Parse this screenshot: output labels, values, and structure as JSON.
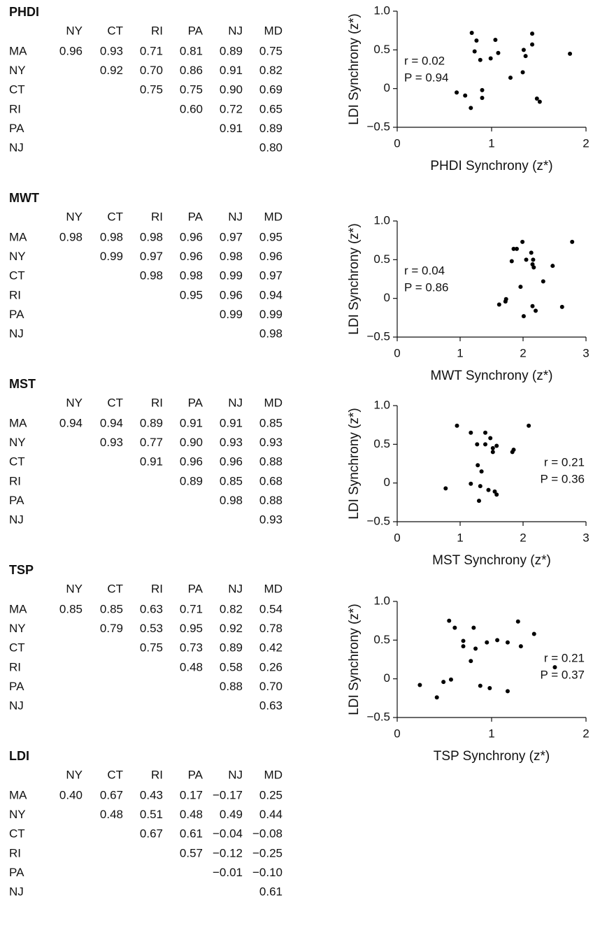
{
  "tables": [
    {
      "title": "PHDI",
      "columns": [
        "NY",
        "CT",
        "RI",
        "PA",
        "NJ",
        "MD"
      ],
      "rows": [
        {
          "label": "MA",
          "cells": [
            "0.96",
            "0.93",
            "0.71",
            "0.81",
            "0.89",
            "0.75"
          ]
        },
        {
          "label": "NY",
          "cells": [
            "0.92",
            "0.70",
            "0.86",
            "0.91",
            "0.82"
          ]
        },
        {
          "label": "CT",
          "cells": [
            "0.75",
            "0.75",
            "0.90",
            "0.69"
          ]
        },
        {
          "label": "RI",
          "cells": [
            "0.60",
            "0.72",
            "0.65"
          ]
        },
        {
          "label": "PA",
          "cells": [
            "0.91",
            "0.89"
          ]
        },
        {
          "label": "NJ",
          "cells": [
            "0.80"
          ]
        }
      ]
    },
    {
      "title": "MWT",
      "columns": [
        "NY",
        "CT",
        "RI",
        "PA",
        "NJ",
        "MD"
      ],
      "rows": [
        {
          "label": "MA",
          "cells": [
            "0.98",
            "0.98",
            "0.98",
            "0.96",
            "0.97",
            "0.95"
          ]
        },
        {
          "label": "NY",
          "cells": [
            "0.99",
            "0.97",
            "0.96",
            "0.98",
            "0.96"
          ]
        },
        {
          "label": "CT",
          "cells": [
            "0.98",
            "0.98",
            "0.99",
            "0.97"
          ]
        },
        {
          "label": "RI",
          "cells": [
            "0.95",
            "0.96",
            "0.94"
          ]
        },
        {
          "label": "PA",
          "cells": [
            "0.99",
            "0.99"
          ]
        },
        {
          "label": "NJ",
          "cells": [
            "0.98"
          ]
        }
      ]
    },
    {
      "title": "MST",
      "columns": [
        "NY",
        "CT",
        "RI",
        "PA",
        "NJ",
        "MD"
      ],
      "rows": [
        {
          "label": "MA",
          "cells": [
            "0.94",
            "0.94",
            "0.89",
            "0.91",
            "0.91",
            "0.85"
          ]
        },
        {
          "label": "NY",
          "cells": [
            "0.93",
            "0.77",
            "0.90",
            "0.93",
            "0.93"
          ]
        },
        {
          "label": "CT",
          "cells": [
            "0.91",
            "0.96",
            "0.96",
            "0.88"
          ]
        },
        {
          "label": "RI",
          "cells": [
            "0.89",
            "0.85",
            "0.68"
          ]
        },
        {
          "label": "PA",
          "cells": [
            "0.98",
            "0.88"
          ]
        },
        {
          "label": "NJ",
          "cells": [
            "0.93"
          ]
        }
      ]
    },
    {
      "title": "TSP",
      "columns": [
        "NY",
        "CT",
        "RI",
        "PA",
        "NJ",
        "MD"
      ],
      "rows": [
        {
          "label": "MA",
          "cells": [
            "0.85",
            "0.85",
            "0.63",
            "0.71",
            "0.82",
            "0.54"
          ]
        },
        {
          "label": "NY",
          "cells": [
            "0.79",
            "0.53",
            "0.95",
            "0.92",
            "0.78"
          ]
        },
        {
          "label": "CT",
          "cells": [
            "0.75",
            "0.73",
            "0.89",
            "0.42"
          ]
        },
        {
          "label": "RI",
          "cells": [
            "0.48",
            "0.58",
            "0.26"
          ]
        },
        {
          "label": "PA",
          "cells": [
            "0.88",
            "0.70"
          ]
        },
        {
          "label": "NJ",
          "cells": [
            "0.63"
          ]
        }
      ]
    },
    {
      "title": "LDI",
      "columns": [
        "NY",
        "CT",
        "RI",
        "PA",
        "NJ",
        "MD"
      ],
      "rows": [
        {
          "label": "MA",
          "cells": [
            "0.40",
            "0.67",
            "0.43",
            "0.17",
            "−0.17",
            "0.25"
          ]
        },
        {
          "label": "NY",
          "cells": [
            "0.48",
            "0.51",
            "0.48",
            "0.49",
            "0.44"
          ]
        },
        {
          "label": "CT",
          "cells": [
            "0.67",
            "0.61",
            "−0.04",
            "−0.08"
          ]
        },
        {
          "label": "RI",
          "cells": [
            "0.57",
            "−0.12",
            "−0.25"
          ]
        },
        {
          "label": "PA",
          "cells": [
            "−0.01",
            "−0.10"
          ]
        },
        {
          "label": "NJ",
          "cells": [
            "0.61"
          ]
        }
      ]
    }
  ],
  "chart_data": [
    {
      "type": "scatter",
      "x_label": "PHDI Synchrony (z*)",
      "y_label": "LDI Synchrony (z*)",
      "annotations": [
        "r = 0.02",
        "P = 0.94"
      ],
      "annotation_corner": "upper-left",
      "color": "#000000",
      "x": [
        0.79,
        0.84,
        0.82,
        0.88,
        1.04,
        1.07,
        0.99,
        0.9,
        0.9,
        0.63,
        0.72,
        0.78,
        1.2,
        1.33,
        1.34,
        1.36,
        1.43,
        1.43,
        1.48,
        1.51,
        1.83
      ],
      "y": [
        0.72,
        0.62,
        0.48,
        0.37,
        0.63,
        0.46,
        0.39,
        -0.02,
        -0.12,
        -0.05,
        -0.09,
        -0.25,
        0.14,
        0.21,
        0.5,
        0.42,
        0.71,
        0.57,
        -0.13,
        -0.17,
        0.45
      ],
      "xlim": [
        0,
        2
      ],
      "xticks": [
        0,
        1,
        2
      ],
      "ylim": [
        -0.5,
        1
      ],
      "yticks": [
        {
          "value": 1,
          "label": "1.0"
        },
        {
          "value": 0.5,
          "label": "0.5"
        },
        0,
        {
          "value": -0.5,
          "label": "−0.5"
        }
      ]
    },
    {
      "type": "scatter",
      "x_label": "MWT Synchrony (z*)",
      "y_label": "LDI Synchrony (z*)",
      "annotations": [
        "r = 0.04",
        "P = 0.86"
      ],
      "annotation_corner": "upper-left",
      "color": "#000000",
      "x": [
        1.62,
        1.72,
        1.73,
        1.82,
        1.85,
        1.9,
        1.96,
        1.99,
        2.01,
        2.05,
        2.13,
        2.15,
        2.17,
        2.16,
        2.15,
        2.2,
        2.32,
        2.47,
        2.62,
        2.78
      ],
      "y": [
        -0.08,
        -0.04,
        -0.01,
        0.48,
        0.64,
        0.64,
        0.15,
        0.73,
        -0.23,
        0.5,
        0.59,
        0.44,
        0.4,
        0.5,
        -0.1,
        -0.16,
        0.22,
        0.42,
        -0.11,
        0.73
      ],
      "xlim": [
        0,
        3
      ],
      "xticks": [
        0,
        1,
        2,
        3
      ],
      "ylim": [
        -0.5,
        1
      ],
      "yticks": [
        {
          "value": 1,
          "label": "1.0"
        },
        {
          "value": 0.5,
          "label": "0.5"
        },
        0,
        {
          "value": -0.5,
          "label": "−0.5"
        }
      ]
    },
    {
      "type": "scatter",
      "x_label": "MST Synchrony (z*)",
      "y_label": "LDI Synchrony (z*)",
      "annotations": [
        "r = 0.21",
        "P = 0.36"
      ],
      "annotation_corner": "right",
      "color": "#000000",
      "x": [
        0.77,
        0.95,
        1.17,
        1.17,
        1.27,
        1.28,
        1.3,
        1.32,
        1.34,
        1.4,
        1.4,
        1.45,
        1.48,
        1.52,
        1.52,
        1.55,
        1.58,
        1.58,
        1.83,
        1.85,
        2.09
      ],
      "y": [
        -0.07,
        0.74,
        0.65,
        -0.01,
        0.5,
        0.23,
        -0.23,
        -0.04,
        0.15,
        0.65,
        0.5,
        -0.09,
        0.58,
        0.45,
        0.4,
        -0.11,
        -0.15,
        0.48,
        0.4,
        0.43,
        0.74
      ],
      "xlim": [
        0,
        3
      ],
      "xticks": [
        0,
        1,
        2,
        3
      ],
      "ylim": [
        -0.5,
        1
      ],
      "yticks": [
        {
          "value": 1,
          "label": "1.0"
        },
        {
          "value": 0.5,
          "label": "0.5"
        },
        0,
        {
          "value": -0.5,
          "label": "−0.5"
        }
      ]
    },
    {
      "type": "scatter",
      "x_label": "TSP Synchrony (z*)",
      "y_label": "LDI Synchrony (z*)",
      "annotations": [
        "r = 0.21",
        "P = 0.37"
      ],
      "annotation_corner": "right",
      "color": "#000000",
      "x": [
        0.24,
        0.42,
        0.49,
        0.55,
        0.57,
        0.61,
        0.7,
        0.7,
        0.78,
        0.81,
        0.83,
        0.88,
        0.95,
        0.98,
        1.06,
        1.17,
        1.17,
        1.28,
        1.31,
        1.45,
        1.67
      ],
      "y": [
        -0.08,
        -0.24,
        -0.04,
        0.75,
        -0.01,
        0.66,
        0.49,
        0.42,
        0.23,
        0.66,
        0.39,
        -0.09,
        0.47,
        -0.12,
        0.5,
        0.47,
        -0.16,
        0.74,
        0.42,
        0.58,
        0.15
      ],
      "xlim": [
        0,
        2
      ],
      "xticks": [
        0,
        1,
        2
      ],
      "ylim": [
        -0.5,
        1
      ],
      "yticks": [
        {
          "value": 1,
          "label": "1.0"
        },
        {
          "value": 0.5,
          "label": "0.5"
        },
        0,
        {
          "value": -0.5,
          "label": "−0.5"
        }
      ]
    }
  ]
}
